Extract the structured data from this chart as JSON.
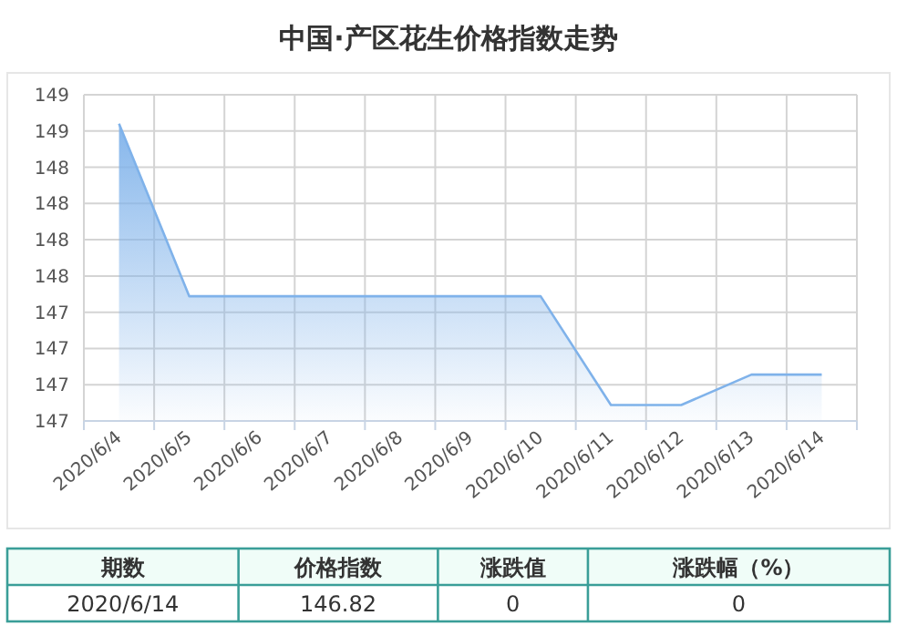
{
  "chart_data": {
    "type": "area",
    "title": "中国·产区花生价格指数走势",
    "categories": [
      "2020/6/4",
      "2020/6/5",
      "2020/6/6",
      "2020/6/7",
      "2020/6/8",
      "2020/6/9",
      "2020/6/10",
      "2020/6/11",
      "2020/6/12",
      "2020/6/13",
      "2020/6/14"
    ],
    "series": [
      {
        "color": "#7fb2ea",
        "values": [
          148.55,
          147.36,
          147.36,
          147.36,
          147.36,
          147.36,
          147.36,
          146.61,
          146.61,
          146.82,
          146.82
        ]
      }
    ],
    "ylim": [
      146.5,
      148.75
    ],
    "yticks": [
      {
        "value": 146.5,
        "label": "147"
      },
      {
        "value": 146.75,
        "label": "147"
      },
      {
        "value": 147,
        "label": "147"
      },
      {
        "value": 147.25,
        "label": "147"
      },
      {
        "value": 147.5,
        "label": "148"
      },
      {
        "value": 147.75,
        "label": "148"
      },
      {
        "value": 148,
        "label": "148"
      },
      {
        "value": 148.25,
        "label": "148"
      },
      {
        "value": 148.5,
        "label": "149"
      },
      {
        "value": 148.75,
        "label": "149"
      }
    ],
    "grid": true,
    "marker": "none",
    "annotations": [
      "期数",
      "价格指数",
      "涨跌值",
      "涨跌幅（%）",
      "2020/6/14",
      "146.82",
      "0",
      "0"
    ]
  }
}
